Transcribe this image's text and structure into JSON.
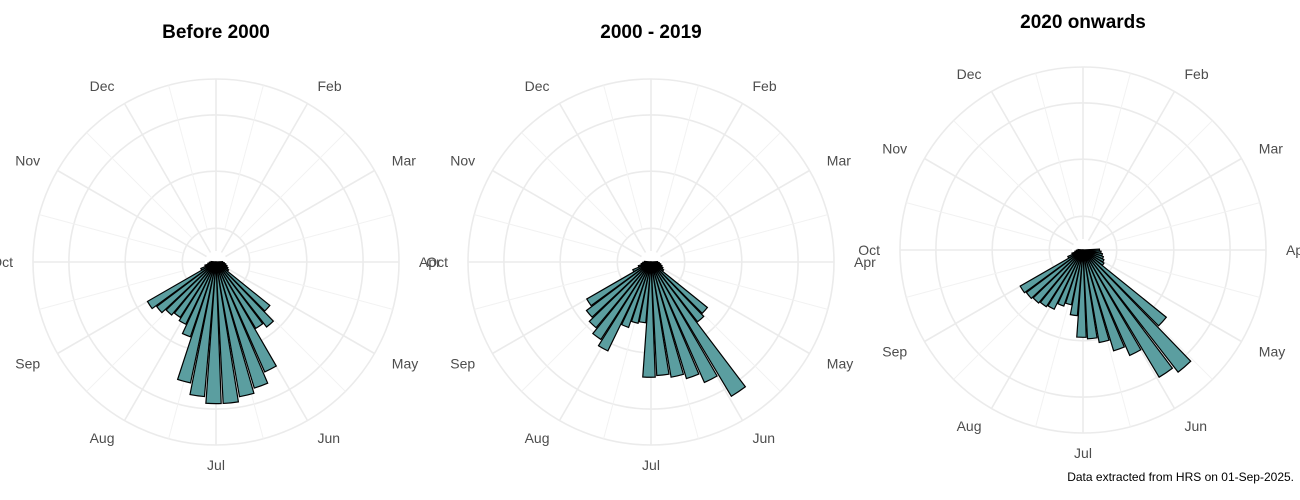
{
  "caption": "Data extracted from HRS on 01-Sep-2025.",
  "style": {
    "bar_fill": "#5b9ea0",
    "bar_stroke": "#000000",
    "grid": "#ebebeb"
  },
  "chart_data": [
    {
      "type": "polar-bar",
      "title": "Before 2000",
      "angular_axis": "week of year, clockwise from top",
      "month_labels": [
        "Feb",
        "Mar",
        "Apr",
        "May",
        "Jun",
        "Jul",
        "Aug",
        "Sep",
        "Oct",
        "Nov",
        "Dec"
      ],
      "radial_max": 1.0,
      "bins": [
        {
          "angle_deg": 90,
          "value": 0.04
        },
        {
          "angle_deg": 97,
          "value": 0.05
        },
        {
          "angle_deg": 104,
          "value": 0.06
        },
        {
          "angle_deg": 111,
          "value": 0.07
        },
        {
          "angle_deg": 118,
          "value": 0.08
        },
        {
          "angle_deg": 125,
          "value": 0.09
        },
        {
          "angle_deg": 132,
          "value": 0.42
        },
        {
          "angle_deg": 139,
          "value": 0.5
        },
        {
          "angle_deg": 146,
          "value": 0.47
        },
        {
          "angle_deg": 153,
          "value": 0.73
        },
        {
          "angle_deg": 160,
          "value": 0.8
        },
        {
          "angle_deg": 167,
          "value": 0.83
        },
        {
          "angle_deg": 174,
          "value": 0.86
        },
        {
          "angle_deg": 181,
          "value": 0.86
        },
        {
          "angle_deg": 188,
          "value": 0.82
        },
        {
          "angle_deg": 195,
          "value": 0.75
        },
        {
          "angle_deg": 202,
          "value": 0.48
        },
        {
          "angle_deg": 209,
          "value": 0.42
        },
        {
          "angle_deg": 216,
          "value": 0.4
        },
        {
          "angle_deg": 223,
          "value": 0.42
        },
        {
          "angle_deg": 230,
          "value": 0.45
        },
        {
          "angle_deg": 237,
          "value": 0.48
        },
        {
          "angle_deg": 244,
          "value": 0.1
        },
        {
          "angle_deg": 251,
          "value": 0.07
        },
        {
          "angle_deg": 258,
          "value": 0.05
        },
        {
          "angle_deg": 265,
          "value": 0.04
        },
        {
          "angle_deg": 272,
          "value": 0.03
        }
      ]
    },
    {
      "type": "polar-bar",
      "title": "2000 - 2019",
      "angular_axis": "week of year, clockwise from top",
      "month_labels": [
        "Feb",
        "Mar",
        "Apr",
        "May",
        "Jun",
        "Jul",
        "Aug",
        "Sep",
        "Oct",
        "Nov",
        "Dec"
      ],
      "radial_max": 1.0,
      "bins": [
        {
          "angle_deg": 90,
          "value": 0.04
        },
        {
          "angle_deg": 97,
          "value": 0.05
        },
        {
          "angle_deg": 104,
          "value": 0.06
        },
        {
          "angle_deg": 111,
          "value": 0.07
        },
        {
          "angle_deg": 118,
          "value": 0.08
        },
        {
          "angle_deg": 125,
          "value": 0.09
        },
        {
          "angle_deg": 132,
          "value": 0.44
        },
        {
          "angle_deg": 139,
          "value": 0.46
        },
        {
          "angle_deg": 146,
          "value": 0.95
        },
        {
          "angle_deg": 153,
          "value": 0.8
        },
        {
          "angle_deg": 160,
          "value": 0.74
        },
        {
          "angle_deg": 167,
          "value": 0.71
        },
        {
          "angle_deg": 174,
          "value": 0.69
        },
        {
          "angle_deg": 181,
          "value": 0.7
        },
        {
          "angle_deg": 188,
          "value": 0.37
        },
        {
          "angle_deg": 195,
          "value": 0.38
        },
        {
          "angle_deg": 202,
          "value": 0.42
        },
        {
          "angle_deg": 209,
          "value": 0.6
        },
        {
          "angle_deg": 216,
          "value": 0.56
        },
        {
          "angle_deg": 223,
          "value": 0.52
        },
        {
          "angle_deg": 230,
          "value": 0.49
        },
        {
          "angle_deg": 237,
          "value": 0.45
        },
        {
          "angle_deg": 244,
          "value": 0.12
        },
        {
          "angle_deg": 251,
          "value": 0.08
        },
        {
          "angle_deg": 258,
          "value": 0.06
        },
        {
          "angle_deg": 265,
          "value": 0.05
        },
        {
          "angle_deg": 272,
          "value": 0.04
        }
      ]
    },
    {
      "type": "polar-bar",
      "title": "2020 onwards",
      "angular_axis": "week of year, clockwise from top",
      "month_labels": [
        "Feb",
        "Mar",
        "Apr",
        "May",
        "Jun",
        "Jul",
        "Aug",
        "Sep",
        "Oct",
        "Nov",
        "Dec"
      ],
      "radial_max": 1.0,
      "bins": [
        {
          "angle_deg": 90,
          "value": 0.1
        },
        {
          "angle_deg": 97,
          "value": 0.11
        },
        {
          "angle_deg": 104,
          "value": 0.12
        },
        {
          "angle_deg": 111,
          "value": 0.13
        },
        {
          "angle_deg": 118,
          "value": 0.14
        },
        {
          "angle_deg": 125,
          "value": 0.15
        },
        {
          "angle_deg": 132,
          "value": 0.65
        },
        {
          "angle_deg": 139,
          "value": 0.94
        },
        {
          "angle_deg": 146,
          "value": 0.9
        },
        {
          "angle_deg": 153,
          "value": 0.7
        },
        {
          "angle_deg": 160,
          "value": 0.64
        },
        {
          "angle_deg": 167,
          "value": 0.57
        },
        {
          "angle_deg": 174,
          "value": 0.54
        },
        {
          "angle_deg": 181,
          "value": 0.53
        },
        {
          "angle_deg": 188,
          "value": 0.4
        },
        {
          "angle_deg": 195,
          "value": 0.34
        },
        {
          "angle_deg": 202,
          "value": 0.36
        },
        {
          "angle_deg": 209,
          "value": 0.4
        },
        {
          "angle_deg": 216,
          "value": 0.41
        },
        {
          "angle_deg": 223,
          "value": 0.42
        },
        {
          "angle_deg": 230,
          "value": 0.43
        },
        {
          "angle_deg": 237,
          "value": 0.44
        },
        {
          "angle_deg": 244,
          "value": 0.1
        },
        {
          "angle_deg": 251,
          "value": 0.07
        },
        {
          "angle_deg": 258,
          "value": 0.05
        },
        {
          "angle_deg": 265,
          "value": 0.04
        },
        {
          "angle_deg": 272,
          "value": 0.03
        }
      ]
    }
  ]
}
